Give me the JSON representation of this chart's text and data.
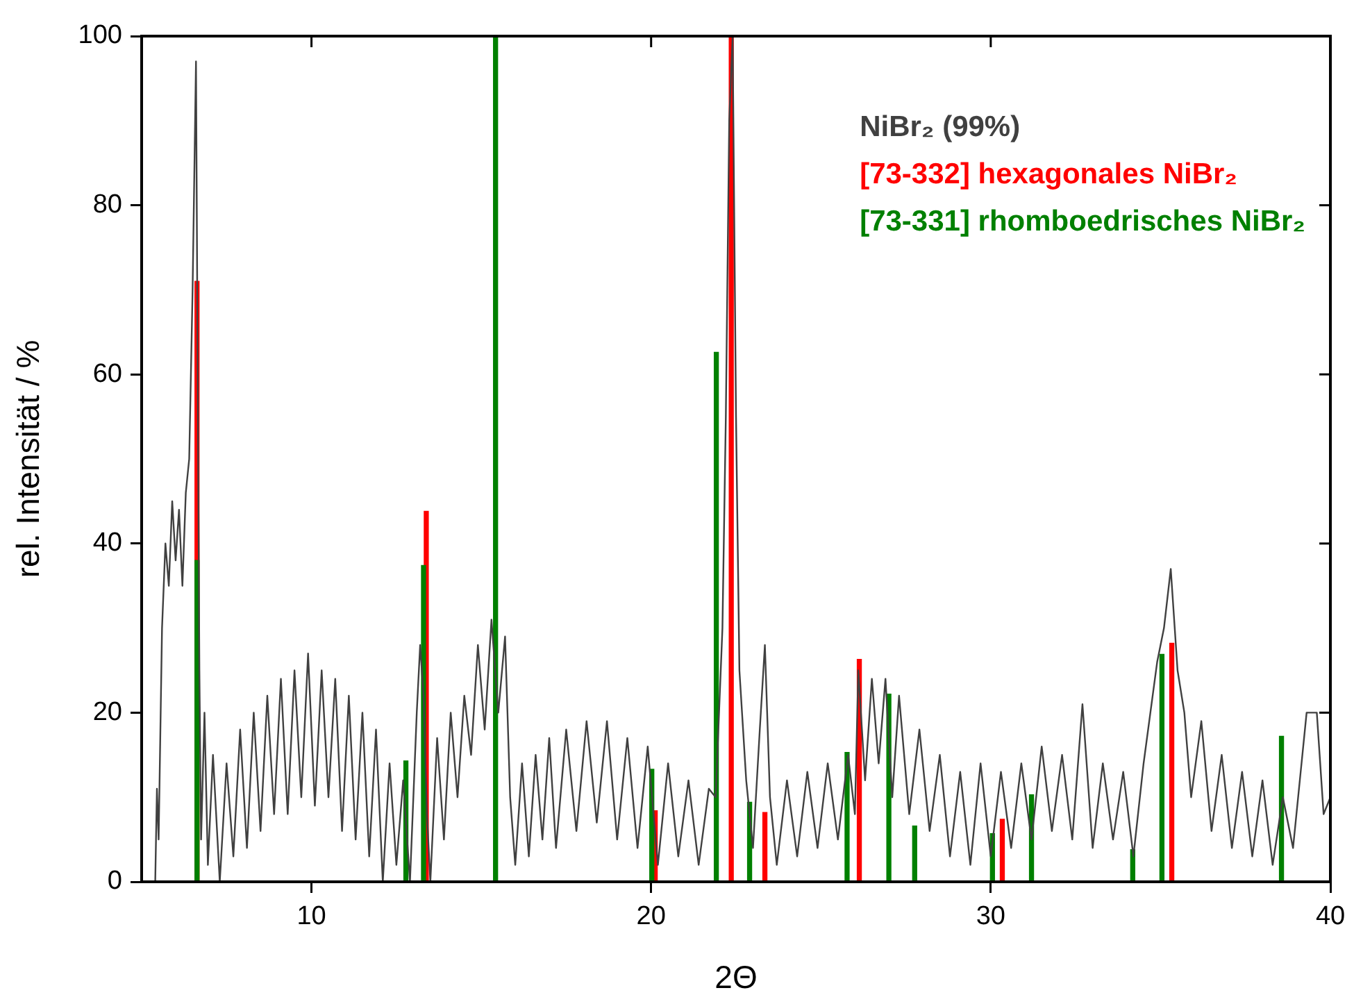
{
  "chart_data": {
    "type": "line",
    "xlabel": "2Θ",
    "ylabel": "rel. Intensität / %",
    "xlim": [
      5,
      40
    ],
    "xticks": [
      10,
      20,
      30,
      40
    ],
    "ylim": [
      0,
      100
    ],
    "yticks": [
      0,
      20,
      40,
      60,
      80,
      100
    ],
    "grid": false,
    "legend": "top right",
    "marker": "none",
    "series": [
      {
        "name": "NiBr₂ (99%)",
        "color": "#404040",
        "x": [
          5.4,
          5.45,
          5.5,
          5.6,
          5.7,
          5.8,
          5.9,
          6.0,
          6.1,
          6.2,
          6.3,
          6.4,
          6.5,
          6.6,
          6.65,
          6.7,
          6.75,
          6.85,
          6.95,
          7.1,
          7.3,
          7.5,
          7.7,
          7.9,
          8.1,
          8.3,
          8.5,
          8.7,
          8.9,
          9.1,
          9.3,
          9.5,
          9.7,
          9.9,
          10.1,
          10.3,
          10.5,
          10.7,
          10.9,
          11.1,
          11.3,
          11.5,
          11.7,
          11.9,
          12.1,
          12.3,
          12.5,
          12.7,
          12.9,
          13.1,
          13.2,
          13.3,
          13.4,
          13.5,
          13.7,
          13.9,
          14.1,
          14.3,
          14.5,
          14.7,
          14.9,
          15.1,
          15.3,
          15.5,
          15.7,
          15.85,
          16.0,
          16.2,
          16.4,
          16.6,
          16.8,
          17.0,
          17.2,
          17.5,
          17.8,
          18.1,
          18.4,
          18.7,
          19.0,
          19.3,
          19.6,
          19.9,
          20.2,
          20.5,
          20.8,
          21.1,
          21.4,
          21.7,
          21.9,
          22.0,
          22.1,
          22.2,
          22.3,
          22.4,
          22.5,
          22.6,
          22.8,
          23.0,
          23.2,
          23.35,
          23.5,
          23.7,
          24.0,
          24.3,
          24.6,
          24.9,
          25.2,
          25.5,
          25.8,
          26.0,
          26.1,
          26.3,
          26.5,
          26.7,
          26.9,
          27.1,
          27.3,
          27.6,
          27.9,
          28.2,
          28.5,
          28.8,
          29.1,
          29.4,
          29.7,
          30.0,
          30.3,
          30.6,
          30.9,
          31.2,
          31.5,
          31.8,
          32.1,
          32.4,
          32.7,
          33.0,
          33.3,
          33.6,
          33.9,
          34.2,
          34.5,
          34.7,
          34.9,
          35.1,
          35.3,
          35.5,
          35.7,
          35.9,
          36.2,
          36.5,
          36.8,
          37.1,
          37.4,
          37.7,
          38.0,
          38.3,
          38.6,
          38.9,
          39.1,
          39.3,
          39.6,
          39.8,
          40.0
        ],
        "values": [
          0,
          11,
          5,
          30,
          40,
          35,
          45,
          38,
          44,
          35,
          46,
          50,
          70,
          97,
          60,
          25,
          5,
          20,
          2,
          15,
          0,
          14,
          3,
          18,
          4,
          20,
          6,
          22,
          8,
          24,
          8,
          25,
          10,
          27,
          9,
          25,
          10,
          24,
          6,
          22,
          5,
          20,
          3,
          18,
          0,
          14,
          2,
          12,
          0,
          20,
          28,
          22,
          8,
          0,
          17,
          5,
          20,
          10,
          22,
          15,
          28,
          18,
          31,
          20,
          29,
          10,
          2,
          14,
          3,
          15,
          5,
          17,
          4,
          18,
          6,
          19,
          7,
          19,
          5,
          17,
          4,
          16,
          2,
          14,
          3,
          12,
          2,
          11,
          10,
          20,
          30,
          55,
          90,
          100,
          55,
          25,
          12,
          4,
          18,
          28,
          10,
          2,
          12,
          3,
          13,
          4,
          14,
          5,
          15,
          8,
          25,
          12,
          24,
          14,
          24,
          10,
          22,
          8,
          18,
          6,
          15,
          3,
          13,
          2,
          14,
          3,
          13,
          4,
          14,
          5,
          16,
          6,
          15,
          5,
          21,
          4,
          14,
          5,
          13,
          3,
          14,
          20,
          26,
          30,
          37,
          25,
          20,
          10,
          19,
          6,
          15,
          4,
          13,
          3,
          12,
          2,
          10,
          4,
          12,
          20,
          20,
          8,
          10
        ]
      },
      {
        "name": "[73-332] hexagonales NiBr₂",
        "type": "bar",
        "color": "#ff0000",
        "x": [
          6.63,
          13.38,
          20.12,
          22.36,
          23.35,
          26.13,
          30.34,
          35.33
        ],
        "values": [
          71,
          43.8,
          8.4,
          100,
          8.2,
          26.3,
          7.4,
          28.2
        ]
      },
      {
        "name": "[73-331] rhomboedrisches NiBr₂",
        "type": "bar",
        "color": "#008000",
        "x": [
          6.63,
          12.78,
          13.3,
          15.42,
          20.02,
          21.92,
          22.9,
          25.77,
          27.0,
          27.76,
          30.05,
          31.2,
          34.18,
          35.04,
          38.56
        ],
        "values": [
          38,
          14.3,
          37.4,
          100,
          13.3,
          62.6,
          9.4,
          15.3,
          22.2,
          6.6,
          5.7,
          10.3,
          3.8,
          26.9,
          17.2
        ]
      }
    ]
  }
}
